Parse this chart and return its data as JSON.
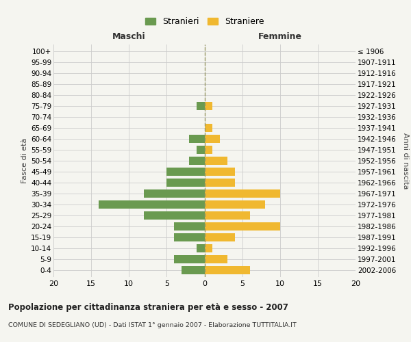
{
  "age_groups": [
    "0-4",
    "5-9",
    "10-14",
    "15-19",
    "20-24",
    "25-29",
    "30-34",
    "35-39",
    "40-44",
    "45-49",
    "50-54",
    "55-59",
    "60-64",
    "65-69",
    "70-74",
    "75-79",
    "80-84",
    "85-89",
    "90-94",
    "95-99",
    "100+"
  ],
  "birth_years": [
    "2002-2006",
    "1997-2001",
    "1992-1996",
    "1987-1991",
    "1982-1986",
    "1977-1981",
    "1972-1976",
    "1967-1971",
    "1962-1966",
    "1957-1961",
    "1952-1956",
    "1947-1951",
    "1942-1946",
    "1937-1941",
    "1932-1936",
    "1927-1931",
    "1922-1926",
    "1917-1921",
    "1912-1916",
    "1907-1911",
    "≤ 1906"
  ],
  "maschi": [
    3,
    4,
    1,
    4,
    4,
    8,
    14,
    8,
    5,
    5,
    2,
    1,
    2,
    0,
    0,
    1,
    0,
    0,
    0,
    0,
    0
  ],
  "femmine": [
    6,
    3,
    1,
    4,
    10,
    6,
    8,
    10,
    4,
    4,
    3,
    1,
    2,
    1,
    0,
    1,
    0,
    0,
    0,
    0,
    0
  ],
  "maschi_color": "#6a9a50",
  "femmine_color": "#f0b830",
  "background_color": "#f5f5f0",
  "grid_color": "#cccccc",
  "center_line_color": "#999966",
  "title": "Popolazione per cittadinanza straniera per età e sesso - 2007",
  "subtitle": "COMUNE DI SEDEGLIANO (UD) - Dati ISTAT 1° gennaio 2007 - Elaborazione TUTTITALIA.IT",
  "xlabel_left": "Maschi",
  "xlabel_right": "Femmine",
  "ylabel_left": "Fasce di età",
  "ylabel_right": "Anni di nascita",
  "legend_maschi": "Stranieri",
  "legend_femmine": "Straniere",
  "xlim": 20,
  "bar_height": 0.75
}
